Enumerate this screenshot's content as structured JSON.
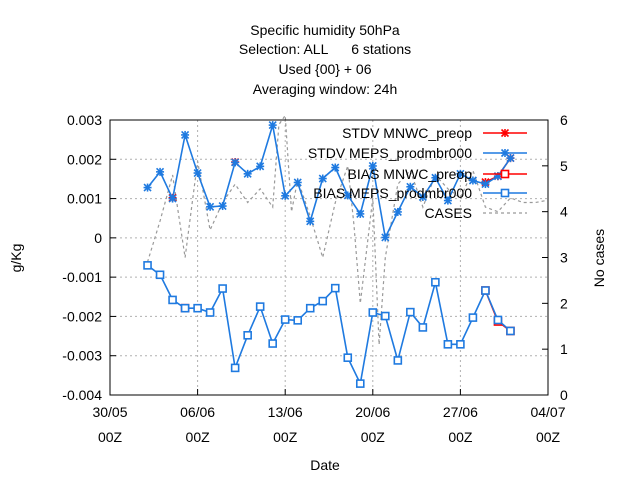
{
  "chart_data": {
    "type": "line",
    "title": [
      "Specific humidity 50hPa",
      "Selection: ALL      6 stations",
      "Used {00} + 06",
      "Averaging window: 24h"
    ],
    "xlabel": "Date",
    "ylabel": "g/Kg",
    "y2label": "No cases",
    "xlim": [
      "2011-05-30",
      "2011-07-04"
    ],
    "x_ticks": [
      {
        "date": "2011-05-30",
        "line1": "30/05",
        "line2": "00Z"
      },
      {
        "date": "2011-06-06",
        "line1": "06/06",
        "line2": "00Z"
      },
      {
        "date": "2011-06-13",
        "line1": "13/06",
        "line2": "00Z"
      },
      {
        "date": "2011-06-20",
        "line1": "20/06",
        "line2": "00Z"
      },
      {
        "date": "2011-06-27",
        "line1": "27/06",
        "line2": "00Z"
      },
      {
        "date": "2011-07-04",
        "line1": "04/07",
        "line2": "00Z"
      }
    ],
    "ylim": [
      -0.004,
      0.003
    ],
    "y_ticks": [
      "-0.004",
      "-0.003",
      "-0.002",
      "-0.001",
      "0",
      "0.001",
      "0.002",
      "0.003"
    ],
    "y2lim": [
      0,
      6
    ],
    "y2_ticks": [
      "0",
      "1",
      "2",
      "3",
      "4",
      "5",
      "6"
    ],
    "grid": true,
    "legend_position": "top-right",
    "x": [
      "2011-06-02",
      "2011-06-03",
      "2011-06-04",
      "2011-06-05",
      "2011-06-06",
      "2011-06-07",
      "2011-06-08",
      "2011-06-09",
      "2011-06-10",
      "2011-06-11",
      "2011-06-12",
      "2011-06-13",
      "2011-06-14",
      "2011-06-15",
      "2011-06-16",
      "2011-06-17",
      "2011-06-18",
      "2011-06-19",
      "2011-06-20",
      "2011-06-21",
      "2011-06-22",
      "2011-06-23",
      "2011-06-24",
      "2011-06-25",
      "2011-06-26",
      "2011-06-27",
      "2011-06-28",
      "2011-06-29",
      "2011-06-30",
      "2011-07-01"
    ],
    "series": [
      {
        "name": "STDV MNWC_preop",
        "color": "#ff0000",
        "marker": "star",
        "axis": "y",
        "values": [
          null,
          null,
          0.00102,
          null,
          null,
          null,
          null,
          0.00193,
          null,
          null,
          null,
          null,
          null,
          null,
          null,
          null,
          null,
          null,
          null,
          null,
          null,
          null,
          null,
          null,
          null,
          null,
          null,
          0.00142,
          0.00157,
          0.00203
        ]
      },
      {
        "name": "STDV MEPS_prodmbr000",
        "color": "#1f7ae0",
        "marker": "star",
        "axis": "y",
        "values": [
          0.00128,
          0.00168,
          0.001,
          0.00262,
          0.00165,
          0.00079,
          0.00081,
          0.00192,
          0.00163,
          0.00182,
          0.00287,
          0.00107,
          0.00141,
          0.00042,
          0.00151,
          0.00179,
          0.00108,
          0.00061,
          0.00183,
          1e-05,
          0.00066,
          0.0013,
          0.00104,
          0.00153,
          0.00095,
          0.00163,
          0.00146,
          0.00137,
          0.00157,
          0.00203
        ]
      },
      {
        "name": "BIAS MNWC_preop",
        "color": "#ff0000",
        "marker": "square",
        "axis": "y",
        "values": [
          null,
          null,
          null,
          -0.00179,
          null,
          null,
          null,
          null,
          null,
          null,
          null,
          null,
          null,
          null,
          null,
          null,
          null,
          null,
          null,
          null,
          null,
          null,
          null,
          null,
          null,
          null,
          null,
          -0.00134,
          -0.00213,
          -0.00237
        ]
      },
      {
        "name": "BIAS MEPS_prodmbr000",
        "color": "#1f7ae0",
        "marker": "square",
        "axis": "y",
        "values": [
          -0.0007,
          -0.00094,
          -0.00158,
          -0.00179,
          -0.00179,
          -0.0019,
          -0.00129,
          -0.00331,
          -0.00248,
          -0.00175,
          -0.00269,
          -0.00208,
          -0.0021,
          -0.00179,
          -0.00161,
          -0.00128,
          -0.00305,
          -0.00371,
          -0.0019,
          -0.00199,
          -0.00312,
          -0.00189,
          -0.00228,
          -0.00113,
          -0.00271,
          -0.00271,
          -0.00203,
          -0.00134,
          -0.00209,
          -0.00237
        ]
      },
      {
        "name": "CASES",
        "color": "#999999",
        "dash": true,
        "axis": "y2",
        "points": [
          [
            "2011-06-02",
            2.9
          ],
          [
            "2011-06-03",
            3.8
          ],
          [
            "2011-06-04",
            4.8
          ],
          [
            "2011-06-05",
            3.0
          ],
          [
            "2011-06-06",
            5.1
          ],
          [
            "2011-06-07",
            3.6
          ],
          [
            "2011-06-08",
            4.2
          ],
          [
            "2011-06-09",
            4.6
          ],
          [
            "2011-06-10",
            4.2
          ],
          [
            "2011-06-11",
            4.5
          ],
          [
            "2011-06-12",
            4.1
          ],
          [
            "2011-06-12.5",
            5.9
          ],
          [
            "2011-06-13",
            6.1
          ],
          [
            "2011-06-13.5",
            4.0
          ],
          [
            "2011-06-14",
            4.7
          ],
          [
            "2011-06-15",
            3.9
          ],
          [
            "2011-06-16",
            3.0
          ],
          [
            "2011-06-17",
            4.2
          ],
          [
            "2011-06-18",
            5.0
          ],
          [
            "2011-06-18.5",
            3.7
          ],
          [
            "2011-06-19",
            2.0
          ],
          [
            "2011-06-20",
            4.3
          ],
          [
            "2011-06-20.5",
            1.1
          ],
          [
            "2011-06-21",
            3.0
          ],
          [
            "2011-06-22",
            4.6
          ],
          [
            "2011-06-23",
            4.9
          ],
          [
            "2011-06-24",
            4.1
          ],
          [
            "2011-06-25",
            4.8
          ],
          [
            "2011-06-26",
            4.5
          ],
          [
            "2011-06-27",
            4.3
          ],
          [
            "2011-06-28",
            4.9
          ],
          [
            "2011-06-29",
            4.1
          ],
          [
            "2011-06-30",
            4.0
          ],
          [
            "2011-07-01",
            4.3
          ],
          [
            "2011-07-02",
            4.2
          ],
          [
            "2011-07-03",
            4.2
          ],
          [
            "2011-07-04",
            4.25
          ]
        ]
      }
    ]
  }
}
